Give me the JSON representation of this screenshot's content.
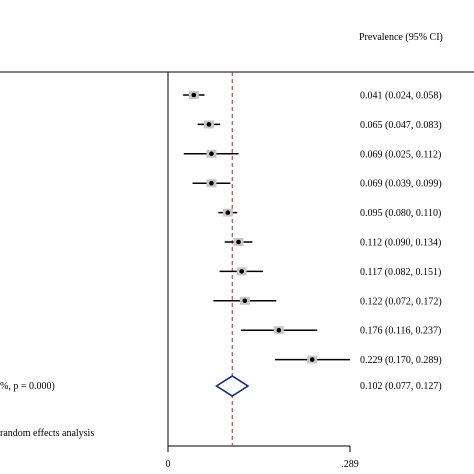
{
  "chart_data": {
    "type": "forest",
    "column_header": "Prevalence (95% CI)",
    "x_axis": {
      "min": 0,
      "max": 0.289,
      "tick_labels": [
        "0",
        ".289"
      ]
    },
    "overall_line": 0.102,
    "studies": [
      {
        "estimate": 0.041,
        "lower": 0.024,
        "upper": 0.058,
        "label": "0.041 (0.024, 0.058)"
      },
      {
        "estimate": 0.065,
        "lower": 0.047,
        "upper": 0.083,
        "label": "0.065 (0.047, 0.083)"
      },
      {
        "estimate": 0.069,
        "lower": 0.025,
        "upper": 0.112,
        "label": "0.069 (0.025, 0.112)"
      },
      {
        "estimate": 0.069,
        "lower": 0.039,
        "upper": 0.099,
        "label": "0.069 (0.039, 0.099)"
      },
      {
        "estimate": 0.095,
        "lower": 0.08,
        "upper": 0.11,
        "label": "0.095 (0.080, 0.110)"
      },
      {
        "estimate": 0.112,
        "lower": 0.09,
        "upper": 0.134,
        "label": "0.112 (0.090, 0.134)"
      },
      {
        "estimate": 0.117,
        "lower": 0.082,
        "upper": 0.151,
        "label": "0.117 (0.082, 0.151)"
      },
      {
        "estimate": 0.122,
        "lower": 0.072,
        "upper": 0.172,
        "label": "0.122 (0.072, 0.172)"
      },
      {
        "estimate": 0.176,
        "lower": 0.116,
        "upper": 0.237,
        "label": "0.176 (0.116, 0.237)"
      },
      {
        "estimate": 0.229,
        "lower": 0.17,
        "upper": 0.289,
        "label": "0.229 (0.170, 0.289)"
      }
    ],
    "overall": {
      "estimate": 0.102,
      "lower": 0.077,
      "upper": 0.127,
      "label": "0.102 (0.077, 0.127)",
      "row_label": "%, p = 0.000)"
    },
    "footnote": "random effects analysis"
  }
}
